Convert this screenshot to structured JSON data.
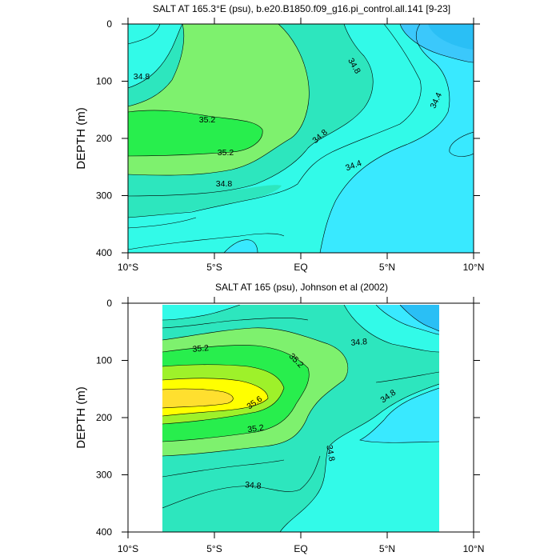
{
  "chart_data": [
    {
      "type": "heatmap",
      "subtype": "filled-contour",
      "title": "SALT AT 165.3°E (psu), b.e20.B1850.f09_g16.pi_control.all.141 [9-23]",
      "xlabel": "",
      "ylabel": "DEPTH (m)",
      "x_ticks": [
        "10°S",
        "5°S",
        "EQ",
        "5°N",
        "10°N"
      ],
      "y_ticks": [
        "0",
        "100",
        "200",
        "300",
        "400"
      ],
      "xlim": [
        -10,
        10
      ],
      "ylim": [
        400,
        0
      ],
      "contour_interval": 0.2,
      "contour_labels": [
        {
          "value": "34.8",
          "x": -9.4,
          "y": 93
        },
        {
          "value": "35.2",
          "x": -4.6,
          "y": 164
        },
        {
          "value": "35.2",
          "x": -3.5,
          "y": 221
        },
        {
          "value": "34.8",
          "x": -4.2,
          "y": 273
        },
        {
          "value": "34.8",
          "x": 3.0,
          "y": 75
        },
        {
          "value": "34.4",
          "x": 7.6,
          "y": 130
        },
        {
          "value": "34.8",
          "x": 1.1,
          "y": 196
        },
        {
          "value": "34.4",
          "x": 3.1,
          "y": 246
        }
      ],
      "fill_colors": {
        "34.2-34.4": "#3BC8FB",
        "34.4-34.6": "#39E9FF",
        "34.6-34.8": "#32FAE8",
        "34.8-35.0": "#2DE6BE",
        "35.0-35.2": "#7EF16E",
        "35.2-35.4": "#28EE4D",
        "low": "#2ABFF5"
      }
    },
    {
      "type": "heatmap",
      "subtype": "filled-contour",
      "title": "SALT AT 165 (psu), Johnson et al (2002)",
      "xlabel": "",
      "ylabel": "DEPTH (m)",
      "x_ticks": [
        "10°S",
        "5°S",
        "EQ",
        "5°N",
        "10°N"
      ],
      "y_ticks": [
        "0",
        "100",
        "200",
        "300",
        "400"
      ],
      "xlim": [
        -10,
        10
      ],
      "ylim": [
        400,
        0
      ],
      "data_extent_x": [
        -8,
        8
      ],
      "data_extent_y": [
        0,
        400
      ],
      "contour_interval": 0.2,
      "contour_labels": [
        {
          "value": "35.2",
          "x": -5.9,
          "y": 78
        },
        {
          "value": "35.2",
          "x": -0.5,
          "y": 103
        },
        {
          "value": "35.6",
          "x": -2.6,
          "y": 185
        },
        {
          "value": "35.2",
          "x": -2.5,
          "y": 222
        },
        {
          "value": "34.8",
          "x": 3.3,
          "y": 71
        },
        {
          "value": "34.8",
          "x": 5.0,
          "y": 163
        },
        {
          "value": "34.8",
          "x": 1.6,
          "y": 263
        },
        {
          "value": "34.8",
          "x": -4.0,
          "y": 311
        }
      ],
      "fill_colors": {
        "34.4-34.6": "#39E9FF",
        "34.6-34.8": "#32FAE8",
        "34.8-35.0": "#2DE6BE",
        "35.0-35.2": "#7EF16E",
        "35.2-35.4": "#28EE4D",
        "35.4-35.6": "#9EF12A",
        "35.6-35.8": "#FFFF00",
        "35.8-36.0": "#FFDF2F",
        "low": "#2ABFF5"
      }
    }
  ]
}
